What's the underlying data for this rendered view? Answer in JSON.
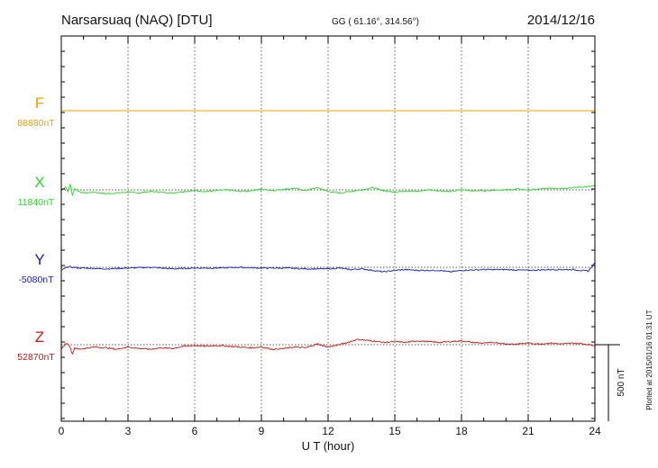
{
  "header": {
    "station": "Narsarsuaq (NAQ)  [DTU]",
    "coords": "GG ( 61.16°, 314.56°)",
    "date": "2014/12/16"
  },
  "plotted_note": "Plotted at 2015/01/16 01:31  UT",
  "chart_data": {
    "type": "line",
    "title": "Narsarsuaq (NAQ)  [DTU]",
    "xlabel": "U T (hour)",
    "xlim": [
      0,
      24
    ],
    "x_ticks": [
      0,
      3,
      6,
      9,
      12,
      15,
      18,
      21,
      24
    ],
    "x_tick_labels": [
      "0",
      "3",
      "6",
      "9",
      "12",
      "15",
      "18",
      "21",
      "24"
    ],
    "grid": "vertical dotted at every 3 hours",
    "scale_bar_label": "500 nT",
    "scale_bar_nT": 500,
    "series": [
      {
        "name": "F",
        "baseline_label": "88880nT",
        "color": "#f0a000",
        "x": [
          0,
          6,
          12,
          18,
          24
        ],
        "y": [
          0,
          0,
          0,
          0,
          0
        ]
      },
      {
        "name": "X",
        "baseline_label": "11840nT",
        "color": "#22dd22",
        "x": [
          0,
          0.2,
          0.3,
          0.4,
          0.5,
          0.6,
          0.8,
          1,
          1.5,
          2,
          2.5,
          3,
          3.5,
          4,
          4.5,
          5,
          5.5,
          6,
          6.5,
          7,
          7.5,
          8,
          8.5,
          9,
          9.5,
          10,
          10.5,
          11,
          11.5,
          12,
          12.5,
          13,
          13.5,
          14,
          14.5,
          15,
          15.5,
          16,
          16.5,
          17,
          17.5,
          18,
          18.5,
          19,
          19.5,
          20,
          20.5,
          21,
          21.5,
          22,
          22.5,
          23,
          23.5,
          24
        ],
        "y": [
          0,
          20,
          -15,
          40,
          -40,
          10,
          -10,
          -20,
          -15,
          -25,
          -20,
          -15,
          -20,
          -10,
          -15,
          -20,
          -10,
          -5,
          -10,
          -5,
          0,
          -10,
          -5,
          5,
          -5,
          5,
          10,
          -5,
          15,
          -10,
          -20,
          -10,
          0,
          15,
          -5,
          -15,
          -5,
          -10,
          0,
          -5,
          -10,
          0,
          -5,
          -5,
          0,
          0,
          5,
          0,
          5,
          10,
          10,
          15,
          20,
          25
        ]
      },
      {
        "name": "Y",
        "baseline_label": "-5080nT",
        "color": "#1a1acc",
        "x": [
          0,
          0.3,
          0.5,
          0.8,
          1,
          2,
          3,
          4,
          5,
          6,
          7,
          8,
          9,
          10,
          11,
          12,
          12.5,
          13,
          13.5,
          14,
          14.5,
          15,
          15.5,
          16,
          17,
          17.5,
          18,
          19,
          20,
          21,
          22,
          23,
          23.7,
          24
        ],
        "y": [
          -20,
          5,
          0,
          -5,
          -5,
          -10,
          -5,
          0,
          -10,
          -5,
          -5,
          0,
          -5,
          -5,
          -10,
          -10,
          -5,
          -15,
          -10,
          -20,
          -30,
          -20,
          -15,
          -20,
          -20,
          -30,
          -20,
          -15,
          -15,
          -20,
          -15,
          -15,
          -25,
          30
        ]
      },
      {
        "name": "Z",
        "baseline_label": "52870nT",
        "color": "#dd1111",
        "x": [
          0,
          0.2,
          0.35,
          0.5,
          0.6,
          0.8,
          1,
          1.5,
          2,
          2.5,
          3,
          3.5,
          4,
          4.5,
          5,
          5.5,
          6,
          6.5,
          7,
          7.5,
          8,
          8.5,
          9,
          9.5,
          10,
          10.5,
          11,
          11.5,
          12,
          12.5,
          13,
          13.3,
          13.6,
          14,
          14.5,
          15,
          15.5,
          16,
          16.5,
          17,
          17.5,
          18,
          18.5,
          19,
          19.5,
          20,
          20.5,
          21,
          21.5,
          22,
          22.5,
          23,
          23.5,
          24
        ],
        "y": [
          -30,
          10,
          0,
          -60,
          -20,
          -30,
          -25,
          -15,
          -20,
          -30,
          -15,
          -25,
          -30,
          -20,
          -25,
          -10,
          -5,
          -10,
          -5,
          -10,
          -15,
          -20,
          -15,
          -30,
          -25,
          -15,
          -20,
          5,
          -15,
          0,
          20,
          35,
          30,
          25,
          15,
          20,
          15,
          25,
          20,
          15,
          20,
          25,
          15,
          10,
          15,
          5,
          5,
          10,
          5,
          10,
          5,
          10,
          5,
          -5
        ]
      }
    ]
  }
}
